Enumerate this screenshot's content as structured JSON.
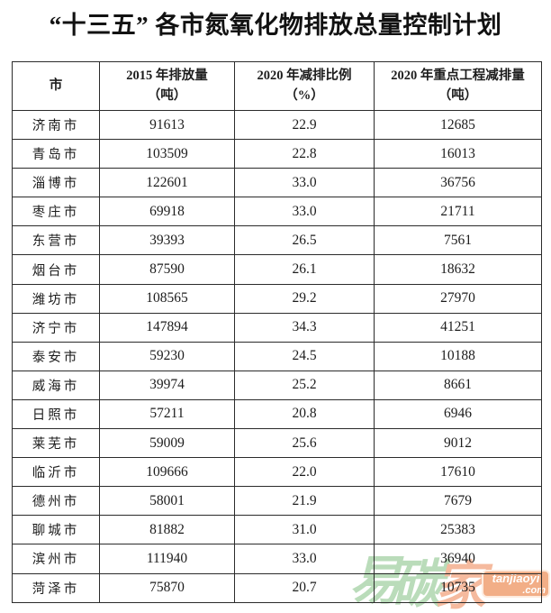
{
  "page": {
    "title": "“十三五” 各市氮氧化物排放总量控制计划"
  },
  "table": {
    "columns": [
      {
        "label": "市",
        "unit": ""
      },
      {
        "label": "2015 年排放量",
        "unit": "（吨）"
      },
      {
        "label": "2020 年减排比例",
        "unit": "（%）"
      },
      {
        "label": "2020 年重点工程减排量",
        "unit": "（吨）"
      }
    ],
    "rows": [
      [
        "济南市",
        "91613",
        "22.9",
        "12685"
      ],
      [
        "青岛市",
        "103509",
        "22.8",
        "16013"
      ],
      [
        "淄博市",
        "122601",
        "33.0",
        "36756"
      ],
      [
        "枣庄市",
        "69918",
        "33.0",
        "21711"
      ],
      [
        "东营市",
        "39393",
        "26.5",
        "7561"
      ],
      [
        "烟台市",
        "87590",
        "26.1",
        "18632"
      ],
      [
        "潍坊市",
        "108565",
        "29.2",
        "27970"
      ],
      [
        "济宁市",
        "147894",
        "34.3",
        "41251"
      ],
      [
        "泰安市",
        "59230",
        "24.5",
        "10188"
      ],
      [
        "威海市",
        "39974",
        "25.2",
        "8661"
      ],
      [
        "日照市",
        "57211",
        "20.8",
        "6946"
      ],
      [
        "莱芜市",
        "59009",
        "25.6",
        "9012"
      ],
      [
        "临沂市",
        "109666",
        "22.0",
        "17610"
      ],
      [
        "德州市",
        "58001",
        "21.9",
        "7679"
      ],
      [
        "聊城市",
        "81882",
        "31.0",
        "25383"
      ],
      [
        "滨州市",
        "111940",
        "33.0",
        "36940"
      ],
      [
        "菏泽市",
        "75870",
        "20.7",
        "10735"
      ]
    ]
  },
  "watermark": {
    "char1": "易",
    "char2": "碳",
    "char3": "家",
    "badge_line1": "tanjiaoyi",
    "badge_line2": ".com",
    "colors": {
      "green": "#aed6ae",
      "salmon": "#f4af8e",
      "badge_bg": "#f0a173",
      "border_dark": "#2b2b2b"
    }
  }
}
